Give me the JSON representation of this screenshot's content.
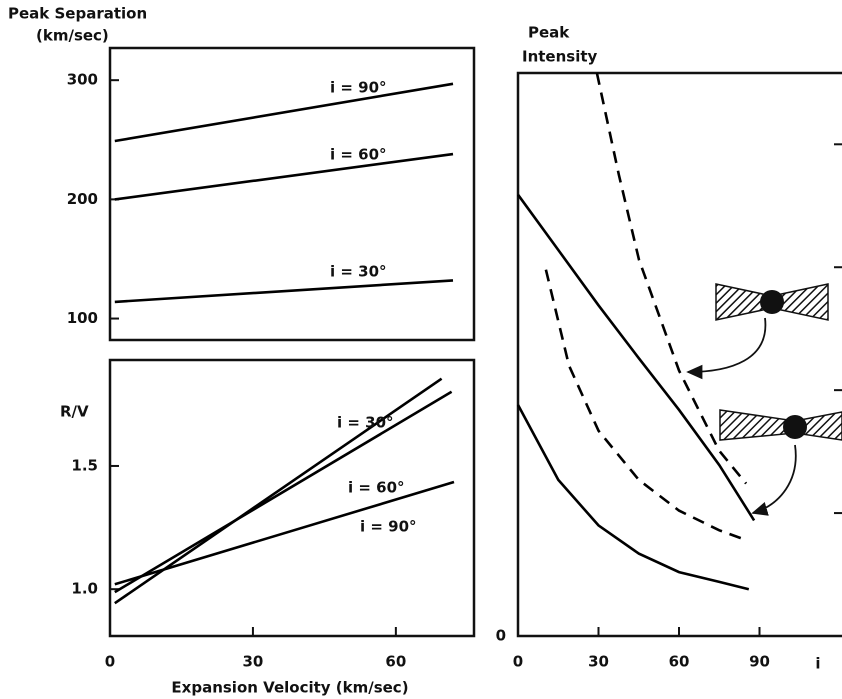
{
  "chart_data": [
    {
      "type": "line",
      "ylabel": [
        "Peak Separation",
        "(km/sec)"
      ],
      "xlim": [
        0,
        76.4
      ],
      "ylim": [
        82,
        327
      ],
      "yticks": [
        100,
        200,
        300
      ],
      "series": [
        {
          "name": "i = 90°",
          "color": "#000000",
          "x": [
            1,
            72
          ],
          "values": [
            249,
            297
          ]
        },
        {
          "name": "i = 60°",
          "color": "#000000",
          "x": [
            1,
            72
          ],
          "values": [
            200,
            238
          ]
        },
        {
          "name": "i = 30°",
          "color": "#000000",
          "x": [
            1,
            72
          ],
          "values": [
            114,
            132
          ]
        }
      ]
    },
    {
      "type": "line",
      "ylabel": "R/V",
      "xlabel": "Expansion Velocity (km/sec)",
      "xlim": [
        0,
        76.4
      ],
      "ylim": [
        0.81,
        1.93
      ],
      "xticks": [
        0,
        30,
        60
      ],
      "yticks": [
        {
          "value": 1,
          "label": "1.0"
        },
        1.5
      ],
      "series": [
        {
          "name": "i = 30°",
          "color": "#000000",
          "x": [
            1,
            69.6
          ],
          "values": [
            0.943,
            1.854
          ]
        },
        {
          "name": "i = 60°",
          "color": "#000000",
          "x": [
            1,
            71.7
          ],
          "values": [
            0.988,
            1.801
          ]
        },
        {
          "name": "i = 90°",
          "color": "#000000",
          "x": [
            1,
            72.2
          ],
          "values": [
            1.02,
            1.435
          ]
        }
      ]
    },
    {
      "type": "line",
      "ylabel": [
        "Peak",
        "Intensity"
      ],
      "xlabel": "i",
      "xlim": [
        0,
        120
      ],
      "ylim": [
        0,
        4.58
      ],
      "xticks": [
        0,
        30,
        60,
        90
      ],
      "yticks": [
        0
      ],
      "minor_yticks": [
        1,
        2,
        3,
        4
      ],
      "series": [
        {
          "color": "#000000",
          "dash": false,
          "x": [
            0,
            15,
            30,
            45,
            60,
            75,
            88
          ],
          "values": [
            3.59,
            3.14,
            2.69,
            2.26,
            1.84,
            1.39,
            0.94
          ]
        },
        {
          "color": "#000000",
          "dash": false,
          "x": [
            0,
            15,
            30,
            45,
            60,
            75,
            86
          ],
          "values": [
            1.88,
            1.27,
            0.9,
            0.67,
            0.52,
            0.44,
            0.38
          ]
        },
        {
          "color": "#000000",
          "dash": true,
          "x": [
            29.4,
            37.6,
            45.1,
            60,
            74.9,
            85
          ],
          "values": [
            4.58,
            3.75,
            3.06,
            2.16,
            1.51,
            1.24
          ]
        },
        {
          "color": "#000000",
          "dash": true,
          "x": [
            10.4,
            19,
            30,
            45,
            60,
            75,
            85
          ],
          "values": [
            2.98,
            2.2,
            1.67,
            1.27,
            1.02,
            0.86,
            0.78
          ]
        }
      ]
    }
  ]
}
